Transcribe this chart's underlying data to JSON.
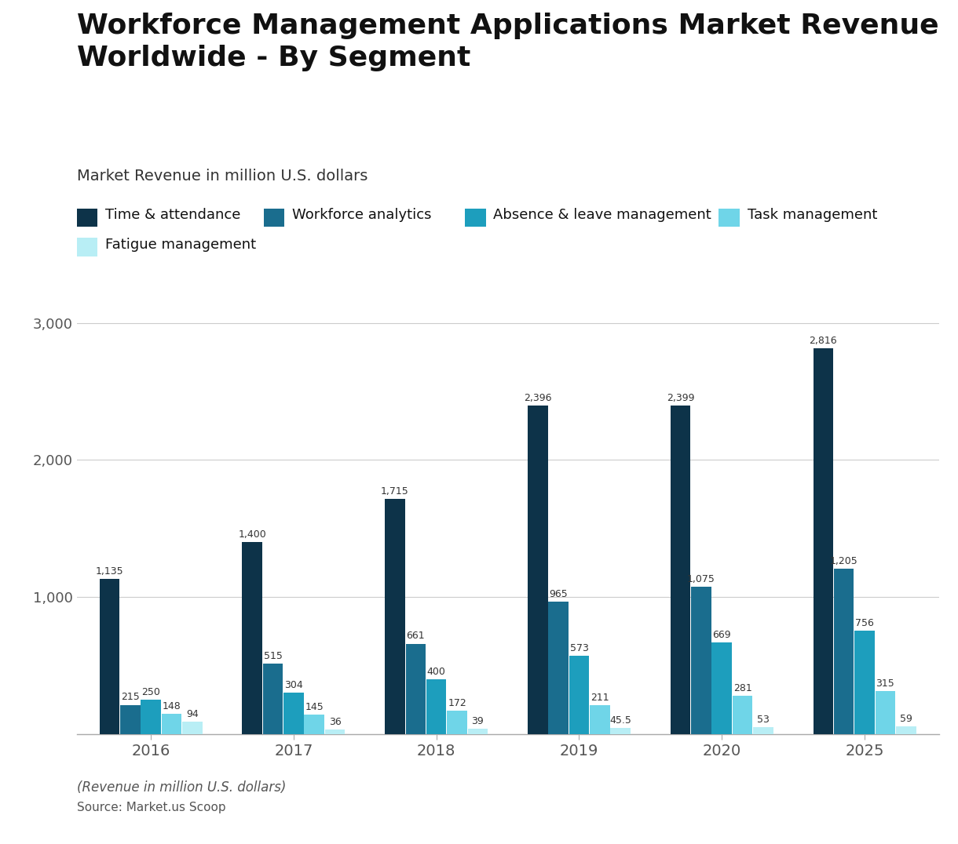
{
  "title": "Workforce Management Applications Market Revenue\nWorldwide - By Segment",
  "subtitle": "Market Revenue in million U.S. dollars",
  "footer_line1": "(Revenue in million U.S. dollars)",
  "footer_line2": "Source: Market.us Scoop",
  "categories": [
    "2016",
    "2017",
    "2018",
    "2019",
    "2020",
    "2025"
  ],
  "series": [
    {
      "name": "Time & attendance",
      "color": "#0d3349",
      "values": [
        1135,
        1400,
        1715,
        2396,
        2399,
        2816
      ]
    },
    {
      "name": "Workforce analytics",
      "color": "#1a6d8e",
      "values": [
        215,
        515,
        661,
        965,
        1075,
        1205
      ]
    },
    {
      "name": "Absence & leave management",
      "color": "#1d9ebd",
      "values": [
        250,
        304,
        400,
        573,
        669,
        756
      ]
    },
    {
      "name": "Task management",
      "color": "#6fd5e8",
      "values": [
        148,
        145,
        172,
        211,
        281,
        315
      ]
    },
    {
      "name": "Fatigue management",
      "color": "#b8eef5",
      "values": [
        94,
        36,
        39,
        45.5,
        53,
        59
      ]
    }
  ],
  "ylim": [
    0,
    3200
  ],
  "yticks": [
    0,
    1000,
    2000,
    3000
  ],
  "ytick_labels": [
    "",
    "1,000",
    "2,000",
    "3,000"
  ],
  "background_color": "#ffffff",
  "grid_color": "#cccccc",
  "title_fontsize": 26,
  "subtitle_fontsize": 14,
  "legend_fontsize": 13,
  "bar_width": 0.145,
  "value_label_fontsize": 9
}
